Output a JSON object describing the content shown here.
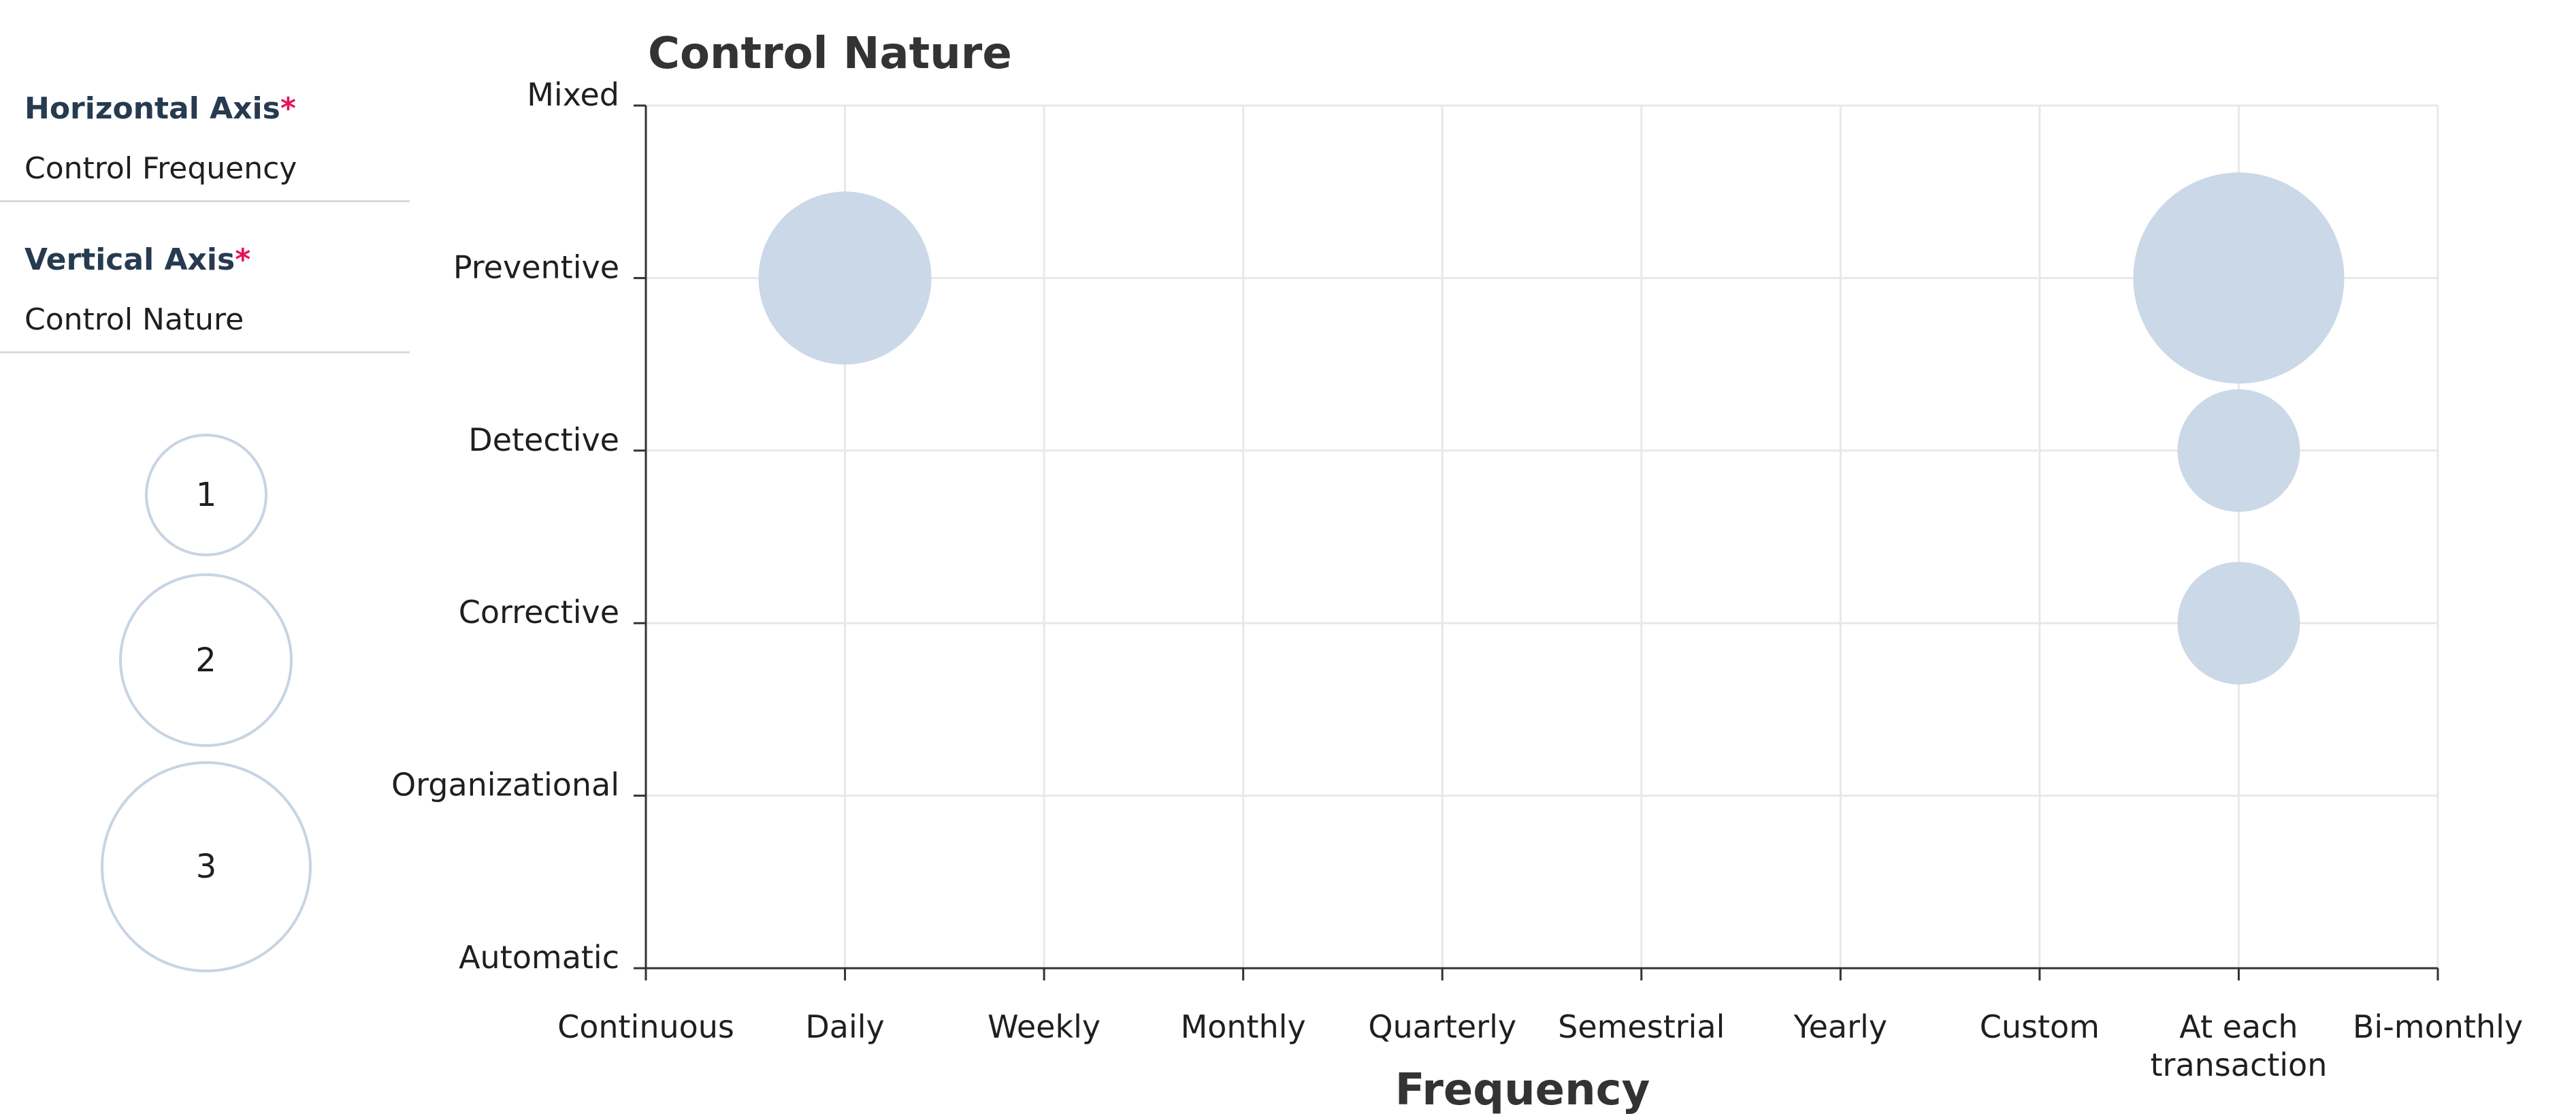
{
  "sidebar": {
    "horizontal_axis": {
      "label": "Horizontal Axis",
      "required_mark": "*",
      "value": "Control Frequency"
    },
    "vertical_axis": {
      "label": "Vertical Axis",
      "required_mark": "*",
      "value": "Control Nature"
    },
    "size_legend": [
      "1",
      "2",
      "3"
    ]
  },
  "colors": {
    "bubble_fill": "#c7d6e6",
    "legend_stroke": "#c7d4e3",
    "required": "#e4145a",
    "grid": "#e8e8e8",
    "axis": "#333333"
  },
  "chart_data": {
    "type": "bubble",
    "title": "Control Nature",
    "xlabel": "Frequency",
    "ylabel": "",
    "x_categories": [
      "Continuous",
      "Daily",
      "Weekly",
      "Monthly",
      "Quarterly",
      "Semestrial",
      "Yearly",
      "Custom",
      "At each\ntransaction",
      "Bi-monthly"
    ],
    "y_categories": [
      "Mixed",
      "Preventive",
      "Detective",
      "Corrective",
      "Organizational",
      "Automatic"
    ],
    "points": [
      {
        "x": "Daily",
        "y": "Preventive",
        "size": 2
      },
      {
        "x": "At each\ntransaction",
        "y": "Preventive",
        "size": 3
      },
      {
        "x": "At each\ntransaction",
        "y": "Detective",
        "size": 1
      },
      {
        "x": "At each\ntransaction",
        "y": "Corrective",
        "size": 1
      }
    ],
    "grid": true
  }
}
